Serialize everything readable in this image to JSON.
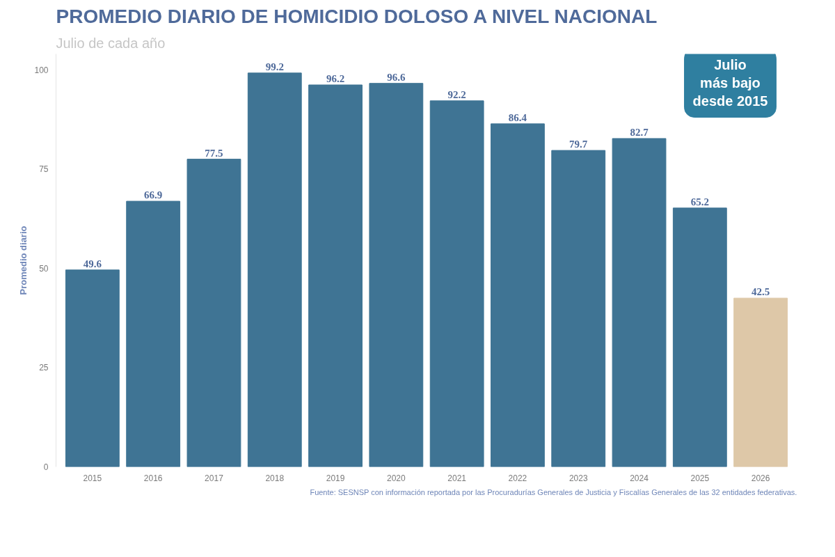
{
  "chart_data": {
    "type": "bar",
    "title": "PROMEDIO DIARIO DE HOMICIDIO DOLOSO A NIVEL NACIONAL",
    "subtitle": "Julio de cada año",
    "ylabel": "Promedio diario",
    "categories": [
      "2015",
      "2016",
      "2017",
      "2018",
      "2019",
      "2020",
      "2021",
      "2022",
      "2023",
      "2024",
      "2025",
      "2026"
    ],
    "values": [
      49.6,
      66.9,
      77.5,
      99.2,
      96.2,
      96.6,
      92.2,
      86.4,
      79.7,
      82.7,
      65.2,
      42.5
    ],
    "colors": [
      "#3f7494",
      "#3f7494",
      "#3f7494",
      "#3f7494",
      "#3f7494",
      "#3f7494",
      "#3f7494",
      "#3f7494",
      "#3f7494",
      "#3f7494",
      "#3f7494",
      "#dec8a8"
    ],
    "ylim": [
      0,
      104
    ],
    "yticks": [
      0,
      25,
      50,
      75,
      100
    ],
    "grid": false,
    "data_labels": true,
    "annotations": [
      "Julio\nmás bajo\ndesde 2015",
      "Fuente: SESNSP con información reportada por las Procuradurías Generales de Justicia y Fiscalías Generales de las 32 entidades federativas."
    ]
  }
}
